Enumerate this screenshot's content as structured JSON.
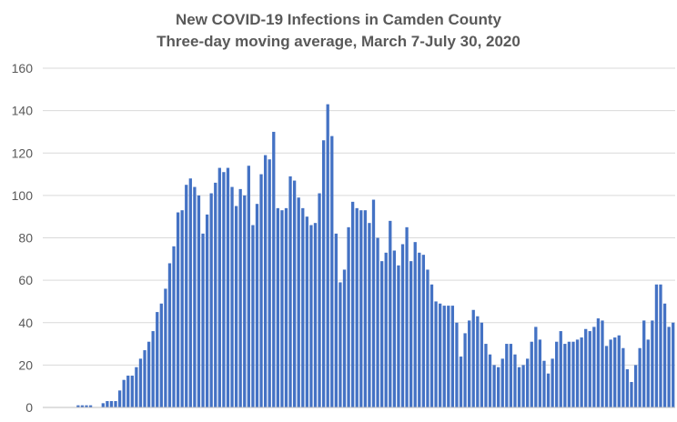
{
  "chart_data": {
    "type": "bar",
    "title": "New COVID-19 Infections in Camden County",
    "subtitle": "Three-day moving average, March 7-July 30, 2020",
    "xlabel": "",
    "ylabel": "",
    "ylim": [
      0,
      160
    ],
    "yticks": [
      0,
      20,
      40,
      60,
      80,
      100,
      120,
      140,
      160
    ],
    "grid": true,
    "legend": "none",
    "bar_color": "#4472c4",
    "x_start_date": "2020-03-07",
    "x_end_date": "2020-07-30",
    "values": [
      0,
      0,
      0,
      0,
      0,
      0,
      0,
      0,
      1,
      1,
      1,
      1,
      0,
      0,
      2,
      3,
      3,
      3,
      8,
      13,
      15,
      15,
      19,
      23,
      27,
      31,
      36,
      45,
      49,
      56,
      68,
      76,
      92,
      93,
      105,
      108,
      104,
      100,
      82,
      91,
      101,
      106,
      113,
      111,
      113,
      104,
      95,
      103,
      100,
      114,
      86,
      96,
      110,
      119,
      117,
      130,
      94,
      93,
      94,
      109,
      107,
      99,
      94,
      90,
      86,
      87,
      101,
      126,
      143,
      128,
      82,
      59,
      65,
      85,
      97,
      94,
      93,
      93,
      87,
      98,
      80,
      69,
      73,
      88,
      74,
      67,
      77,
      85,
      69,
      78,
      73,
      72,
      65,
      58,
      50,
      49,
      48,
      48,
      48,
      40,
      24,
      35,
      41,
      46,
      43,
      40,
      30,
      25,
      20,
      19,
      23,
      30,
      30,
      25,
      19,
      20,
      23,
      31,
      38,
      32,
      22,
      16,
      23,
      31,
      36,
      30,
      31,
      31,
      32,
      33,
      37,
      36,
      38,
      42,
      41,
      29,
      32,
      33,
      34,
      28,
      18,
      12,
      20,
      28,
      41,
      32,
      41,
      58,
      58,
      49,
      38,
      40
    ]
  }
}
